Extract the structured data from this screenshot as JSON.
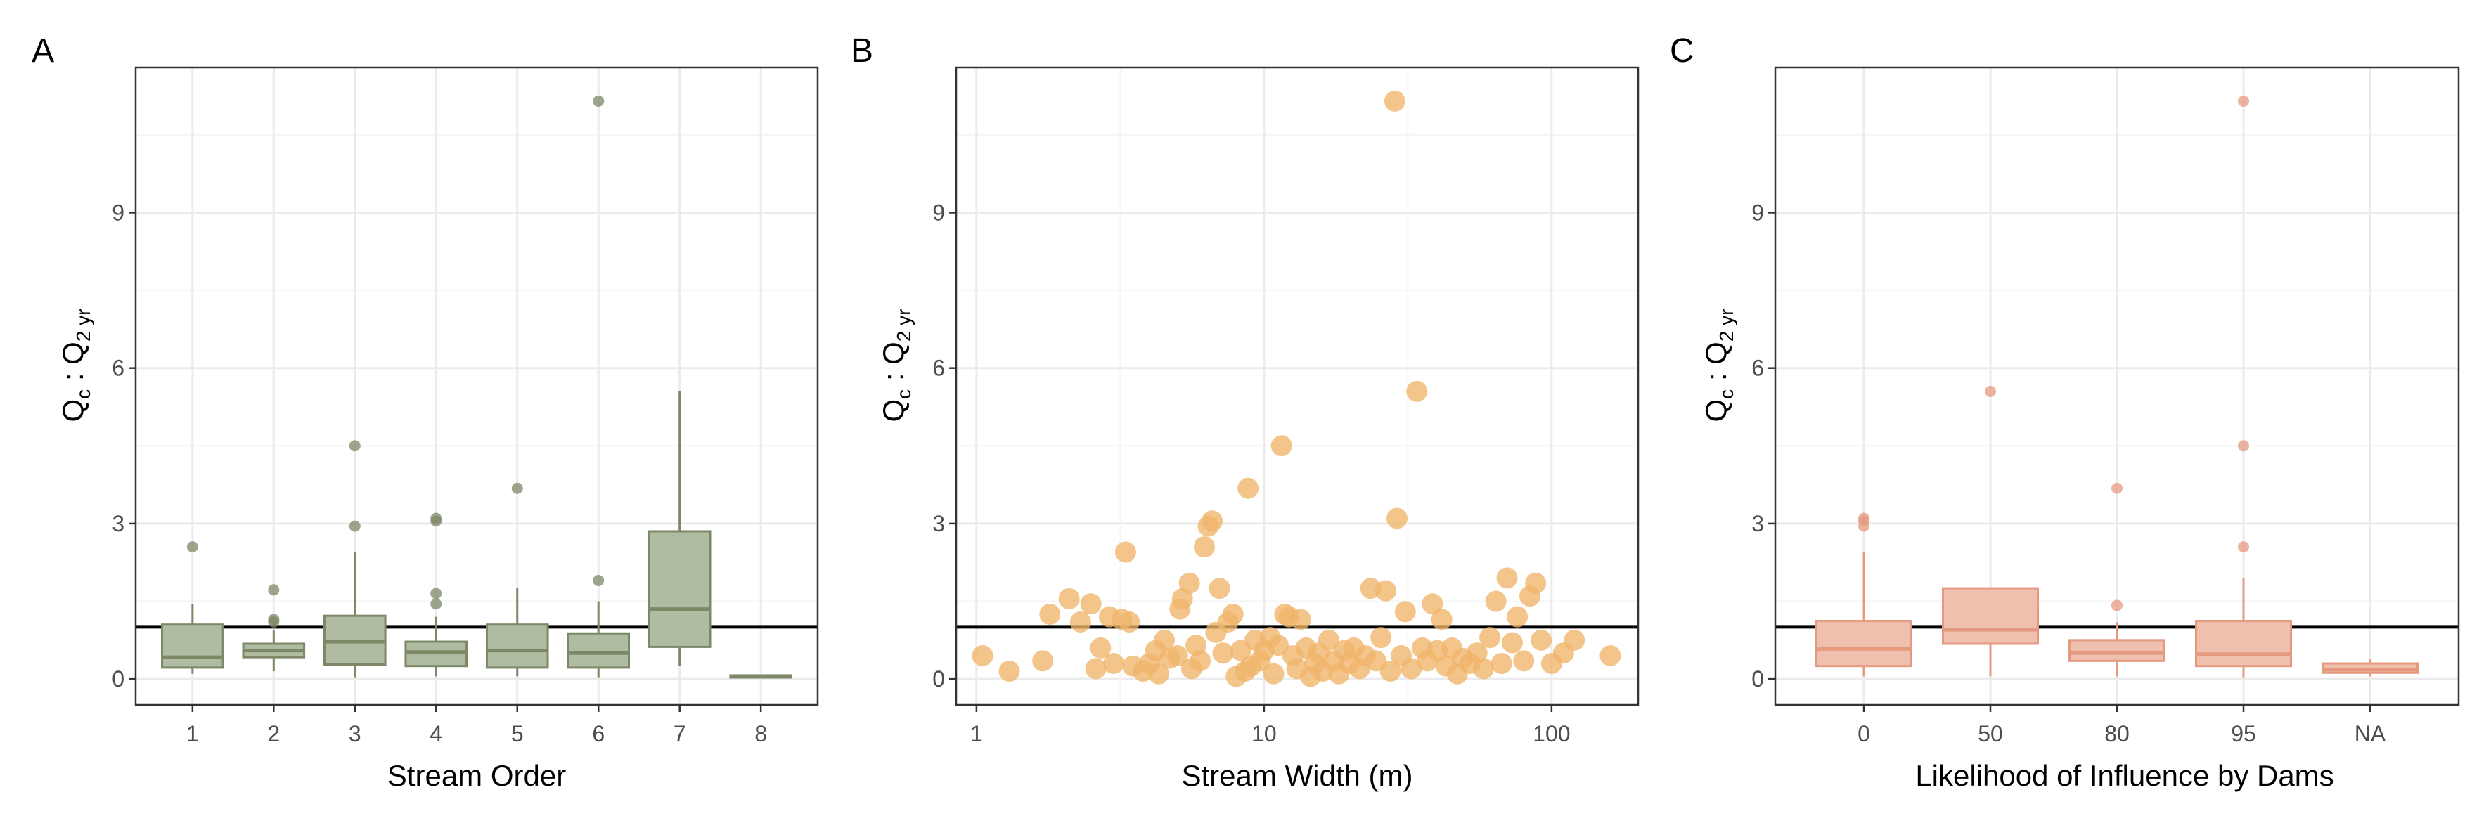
{
  "chart_data": [
    {
      "type": "box",
      "panel_label": "A",
      "xlabel": "Stream Order",
      "ylabel_main": "Q",
      "ylabel_sub1": "c",
      "ylabel_sep": " : Q",
      "ylabel_sub2": "2 yr",
      "ylim": [
        -0.5,
        11.8
      ],
      "yticks": [
        0,
        3,
        6,
        9
      ],
      "grid": true,
      "reference_line_y": 1,
      "categories": [
        "1",
        "2",
        "3",
        "4",
        "5",
        "6",
        "7",
        "8"
      ],
      "colors": {
        "fill": "#b0bca2",
        "stroke": "#7c8866"
      },
      "boxes": [
        {
          "category": "1",
          "whisker_low": 0.1,
          "q1": 0.22,
          "median": 0.42,
          "q3": 1.05,
          "whisker_high": 1.45,
          "outliers": [
            2.55
          ]
        },
        {
          "category": "2",
          "whisker_low": 0.15,
          "q1": 0.42,
          "median": 0.55,
          "q3": 0.68,
          "whisker_high": 0.95,
          "outliers": [
            1.1,
            1.15,
            1.72
          ]
        },
        {
          "category": "3",
          "whisker_low": 0.02,
          "q1": 0.28,
          "median": 0.72,
          "q3": 1.22,
          "whisker_high": 2.45,
          "outliers": [
            2.95,
            4.5
          ]
        },
        {
          "category": "4",
          "whisker_low": 0.05,
          "q1": 0.25,
          "median": 0.52,
          "q3": 0.72,
          "whisker_high": 1.2,
          "outliers": [
            1.45,
            1.65,
            3.05,
            3.1
          ]
        },
        {
          "category": "5",
          "whisker_low": 0.05,
          "q1": 0.22,
          "median": 0.55,
          "q3": 1.05,
          "whisker_high": 1.75,
          "outliers": [
            3.68
          ]
        },
        {
          "category": "6",
          "whisker_low": 0.02,
          "q1": 0.22,
          "median": 0.5,
          "q3": 0.88,
          "whisker_high": 1.5,
          "outliers": [
            1.9,
            11.15
          ]
        },
        {
          "category": "7",
          "whisker_low": 0.25,
          "q1": 0.62,
          "median": 1.35,
          "q3": 2.85,
          "whisker_high": 5.55,
          "outliers": []
        },
        {
          "category": "8",
          "whisker_low": 0.02,
          "q1": 0.03,
          "median": 0.05,
          "q3": 0.07,
          "whisker_high": 0.08,
          "outliers": []
        }
      ]
    },
    {
      "type": "scatter",
      "panel_label": "B",
      "xlabel": "Stream Width (m)",
      "ylabel_main": "Q",
      "ylabel_sub1": "c",
      "ylabel_sep": " : Q",
      "ylabel_sub2": "2 yr",
      "x_scale": "log10",
      "xlim": [
        0.85,
        200
      ],
      "xticks": [
        1,
        10,
        100
      ],
      "xtick_labels": [
        "1",
        "10",
        "100"
      ],
      "ylim": [
        -0.5,
        11.8
      ],
      "yticks": [
        0,
        3,
        6,
        9
      ],
      "grid": true,
      "reference_line_y": 1,
      "colors": {
        "point": "#f0b56a"
      },
      "points": [
        [
          1.05,
          0.45
        ],
        [
          1.3,
          0.15
        ],
        [
          1.7,
          0.35
        ],
        [
          1.8,
          1.25
        ],
        [
          2.1,
          1.55
        ],
        [
          2.3,
          1.1
        ],
        [
          2.5,
          1.45
        ],
        [
          2.6,
          0.2
        ],
        [
          2.7,
          0.6
        ],
        [
          2.9,
          1.2
        ],
        [
          3.0,
          0.3
        ],
        [
          3.2,
          1.15
        ],
        [
          3.3,
          2.45
        ],
        [
          3.4,
          1.1
        ],
        [
          3.5,
          0.25
        ],
        [
          3.8,
          0.15
        ],
        [
          4.0,
          0.3
        ],
        [
          4.2,
          0.55
        ],
        [
          4.3,
          0.1
        ],
        [
          4.5,
          0.75
        ],
        [
          4.7,
          0.4
        ],
        [
          5.0,
          0.45
        ],
        [
          5.1,
          1.35
        ],
        [
          5.2,
          1.55
        ],
        [
          5.5,
          1.85
        ],
        [
          5.6,
          0.2
        ],
        [
          5.8,
          0.65
        ],
        [
          6.0,
          0.35
        ],
        [
          6.2,
          2.55
        ],
        [
          6.4,
          2.95
        ],
        [
          6.6,
          3.05
        ],
        [
          6.8,
          0.9
        ],
        [
          7.0,
          1.75
        ],
        [
          7.2,
          0.5
        ],
        [
          7.5,
          1.1
        ],
        [
          7.8,
          1.25
        ],
        [
          8.0,
          0.05
        ],
        [
          8.3,
          0.55
        ],
        [
          8.6,
          0.15
        ],
        [
          8.8,
          3.68
        ],
        [
          9.0,
          0.25
        ],
        [
          9.3,
          0.75
        ],
        [
          9.7,
          0.35
        ],
        [
          10.0,
          0.55
        ],
        [
          10.5,
          0.8
        ],
        [
          10.8,
          0.1
        ],
        [
          11.2,
          0.65
        ],
        [
          11.5,
          4.5
        ],
        [
          11.8,
          1.25
        ],
        [
          12.2,
          1.2
        ],
        [
          12.6,
          0.45
        ],
        [
          13.0,
          0.2
        ],
        [
          13.4,
          1.15
        ],
        [
          14.0,
          0.6
        ],
        [
          14.5,
          0.05
        ],
        [
          15.0,
          0.3
        ],
        [
          15.5,
          0.5
        ],
        [
          16.0,
          0.15
        ],
        [
          16.8,
          0.75
        ],
        [
          17.5,
          0.35
        ],
        [
          18.2,
          0.1
        ],
        [
          19.0,
          0.55
        ],
        [
          19.8,
          0.3
        ],
        [
          20.5,
          0.6
        ],
        [
          21.5,
          0.2
        ],
        [
          22.5,
          0.45
        ],
        [
          23.5,
          1.75
        ],
        [
          24.5,
          0.35
        ],
        [
          25.5,
          0.8
        ],
        [
          26.5,
          1.7
        ],
        [
          27.5,
          0.15
        ],
        [
          28.5,
          11.15
        ],
        [
          29.0,
          3.1
        ],
        [
          30.0,
          0.45
        ],
        [
          31.0,
          1.3
        ],
        [
          32.5,
          0.2
        ],
        [
          34.0,
          5.55
        ],
        [
          35.5,
          0.6
        ],
        [
          37.0,
          0.35
        ],
        [
          38.5,
          1.45
        ],
        [
          40.0,
          0.55
        ],
        [
          41.5,
          1.15
        ],
        [
          43.0,
          0.25
        ],
        [
          45.0,
          0.6
        ],
        [
          47.0,
          0.1
        ],
        [
          49.0,
          0.4
        ],
        [
          52.0,
          0.3
        ],
        [
          55.0,
          0.5
        ],
        [
          58.0,
          0.2
        ],
        [
          61.0,
          0.8
        ],
        [
          64.0,
          1.5
        ],
        [
          67.0,
          0.3
        ],
        [
          70.0,
          1.95
        ],
        [
          73.0,
          0.7
        ],
        [
          76.0,
          1.2
        ],
        [
          80.0,
          0.35
        ],
        [
          84.0,
          1.6
        ],
        [
          88.0,
          1.85
        ],
        [
          92.0,
          0.75
        ],
        [
          100.0,
          0.3
        ],
        [
          110.0,
          0.5
        ],
        [
          120.0,
          0.75
        ],
        [
          160.0,
          0.45
        ]
      ]
    },
    {
      "type": "box",
      "panel_label": "C",
      "xlabel": "Likelihood of Influence by Dams",
      "ylabel_main": "Q",
      "ylabel_sub1": "c",
      "ylabel_sep": " : Q",
      "ylabel_sub2": "2 yr",
      "ylim": [
        -0.5,
        11.8
      ],
      "yticks": [
        0,
        3,
        6,
        9
      ],
      "grid": true,
      "reference_line_y": 1,
      "categories": [
        "0",
        "50",
        "80",
        "95",
        "NA"
      ],
      "colors": {
        "fill": "#efc0ae",
        "stroke": "#e59a80"
      },
      "boxes": [
        {
          "category": "0",
          "whisker_low": 0.05,
          "q1": 0.25,
          "median": 0.58,
          "q3": 1.12,
          "whisker_high": 2.45,
          "outliers": [
            2.95,
            3.05,
            3.1
          ]
        },
        {
          "category": "50",
          "whisker_low": 0.05,
          "q1": 0.68,
          "median": 0.95,
          "q3": 1.75,
          "whisker_high": 1.75,
          "outliers": [
            5.55
          ]
        },
        {
          "category": "80",
          "whisker_low": 0.05,
          "q1": 0.35,
          "median": 0.5,
          "q3": 0.75,
          "whisker_high": 1.1,
          "outliers": [
            1.42,
            3.68
          ]
        },
        {
          "category": "95",
          "whisker_low": 0.02,
          "q1": 0.25,
          "median": 0.48,
          "q3": 1.12,
          "whisker_high": 1.95,
          "outliers": [
            2.55,
            4.5,
            11.15
          ]
        },
        {
          "category": "NA",
          "whisker_low": 0.05,
          "q1": 0.12,
          "median": 0.18,
          "q3": 0.3,
          "whisker_high": 0.38,
          "outliers": []
        }
      ]
    }
  ]
}
